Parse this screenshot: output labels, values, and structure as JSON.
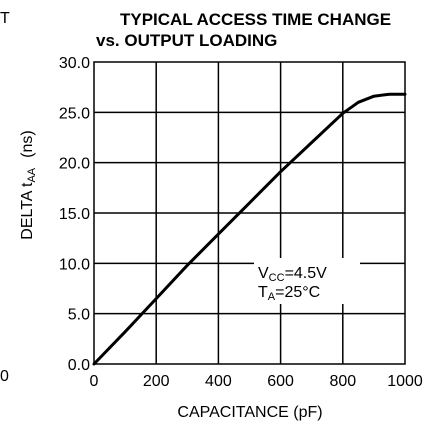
{
  "cropped_left": {
    "top": "T",
    "bottom": "0"
  },
  "chart_data": {
    "type": "line",
    "title_line1": "TYPICAL ACCESS TIME CHANGE",
    "title_line2": "vs. OUTPUT LOADING",
    "xlabel": "CAPACITANCE (pF)",
    "ylabel_main": "DELTA t",
    "ylabel_sub": "AA",
    "ylabel_unit": "(ns)",
    "xlim": [
      0,
      1000
    ],
    "ylim": [
      0,
      30
    ],
    "x_ticks": [
      "0",
      "200",
      "400",
      "600",
      "800",
      "1000"
    ],
    "y_ticks": [
      "0.0",
      "5.0",
      "10.0",
      "15.0",
      "20.0",
      "25.0",
      "30.0"
    ],
    "grid": true,
    "series": [
      {
        "x": [
          0,
          100,
          200,
          300,
          400,
          500,
          600,
          700,
          800,
          850,
          900,
          950,
          1000
        ],
        "values": [
          0,
          3.2,
          6.5,
          9.8,
          12.9,
          16.0,
          19.1,
          22.0,
          24.9,
          26.0,
          26.6,
          26.8,
          26.8
        ]
      }
    ],
    "annotation": {
      "vcc_main": "V",
      "vcc_sub": "CC",
      "vcc_value": "=4.5V",
      "ta_main": "T",
      "ta_sub": "A",
      "ta_value": "=25°C"
    }
  }
}
